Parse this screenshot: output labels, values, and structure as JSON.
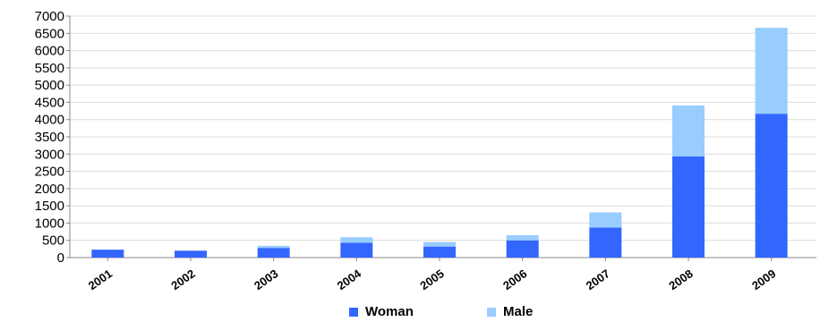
{
  "chart_data": {
    "type": "bar",
    "stacked": true,
    "categories": [
      "2001",
      "2002",
      "2003",
      "2004",
      "2005",
      "2006",
      "2007",
      "2008",
      "2009"
    ],
    "series": [
      {
        "name": "Woman",
        "color": "#3366ff",
        "values": [
          230,
          200,
          280,
          430,
          320,
          500,
          870,
          2930,
          4170
        ]
      },
      {
        "name": "Male",
        "color": "#99ccff",
        "values": [
          0,
          0,
          60,
          160,
          130,
          150,
          440,
          1480,
          2490
        ]
      }
    ],
    "yticks": [
      0,
      500,
      1000,
      1500,
      2000,
      2500,
      3000,
      3500,
      4000,
      4500,
      5000,
      5500,
      6000,
      6500,
      7000
    ],
    "ylim": [
      0,
      7000
    ],
    "grid": true,
    "legend": "bottom"
  }
}
